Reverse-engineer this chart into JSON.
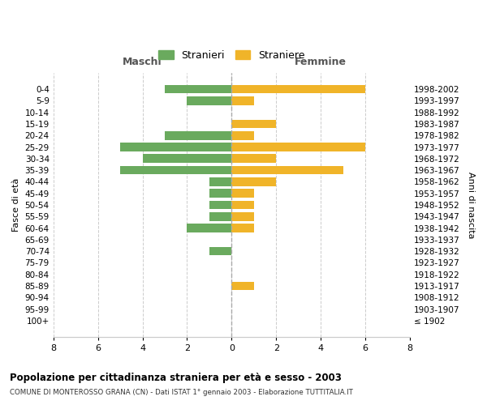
{
  "age_groups": [
    "0-4",
    "5-9",
    "10-14",
    "15-19",
    "20-24",
    "25-29",
    "30-34",
    "35-39",
    "40-44",
    "45-49",
    "50-54",
    "55-59",
    "60-64",
    "65-69",
    "70-74",
    "75-79",
    "80-84",
    "85-89",
    "90-94",
    "95-99",
    "100+"
  ],
  "birth_years": [
    "1998-2002",
    "1993-1997",
    "1988-1992",
    "1983-1987",
    "1978-1982",
    "1973-1977",
    "1968-1972",
    "1963-1967",
    "1958-1962",
    "1953-1957",
    "1948-1952",
    "1943-1947",
    "1938-1942",
    "1933-1937",
    "1928-1932",
    "1923-1927",
    "1918-1922",
    "1913-1917",
    "1908-1912",
    "1903-1907",
    "≤ 1902"
  ],
  "maschi": [
    3,
    2,
    0,
    0,
    3,
    5,
    4,
    5,
    1,
    1,
    1,
    1,
    2,
    0,
    1,
    0,
    0,
    0,
    0,
    0,
    0
  ],
  "femmine": [
    6,
    1,
    0,
    2,
    1,
    6,
    2,
    5,
    2,
    1,
    1,
    1,
    1,
    0,
    0,
    0,
    0,
    1,
    0,
    0,
    0
  ],
  "color_maschi": "#6aaa5e",
  "color_femmine": "#f0b429",
  "title": "Popolazione per cittadinanza straniera per età e sesso - 2003",
  "subtitle": "COMUNE DI MONTEROSSO GRANA (CN) - Dati ISTAT 1° gennaio 2003 - Elaborazione TUTTITALIA.IT",
  "xlabel_left": "Maschi",
  "xlabel_right": "Femmine",
  "ylabel_left": "Fasce di età",
  "ylabel_right": "Anni di nascita",
  "legend_maschi": "Stranieri",
  "legend_femmine": "Straniere",
  "xlim": 8,
  "background_color": "#ffffff",
  "grid_color": "#cccccc"
}
